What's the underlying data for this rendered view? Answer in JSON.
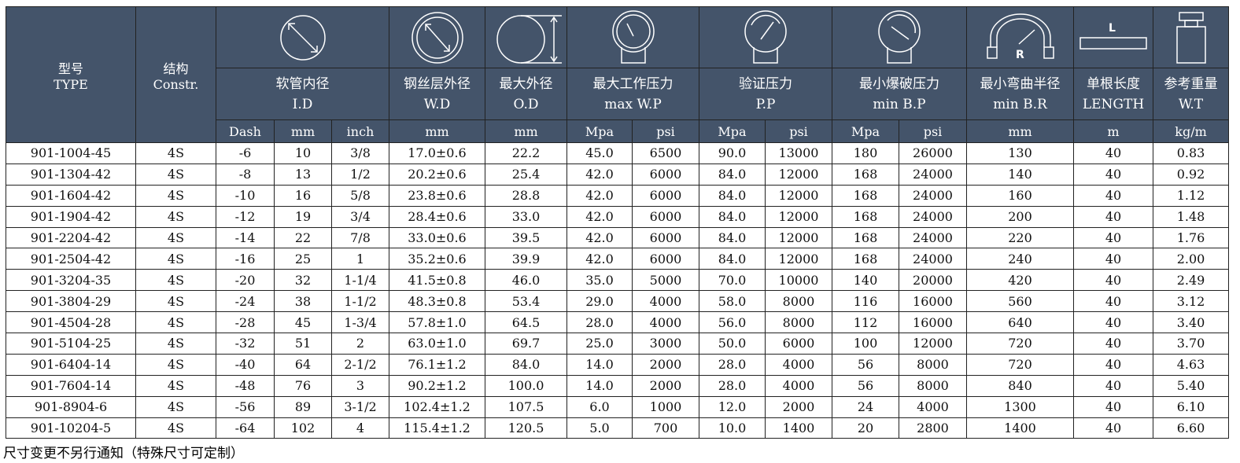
{
  "header": {
    "type": [
      "型号",
      "TYPE"
    ],
    "constr": [
      "结构",
      "Constr."
    ],
    "id": [
      "软管内径",
      "I.D"
    ],
    "wd": [
      "钢丝层外径",
      "W.D"
    ],
    "od": [
      "最大外径",
      "O.D"
    ],
    "wp": [
      "最大工作压力",
      "max W.P"
    ],
    "pp": [
      "验证压力",
      "P.P"
    ],
    "bp": [
      "最小爆破压力",
      "min B.P"
    ],
    "br": [
      "最小弯曲半径",
      "min B.R"
    ],
    "len": [
      "单根长度",
      "LENGTH"
    ],
    "wt": [
      "参考重量",
      "W.T"
    ],
    "br_icon_letter": "R",
    "len_icon_letter": "L"
  },
  "units": [
    "Dash",
    "mm",
    "inch",
    "mm",
    "mm",
    "Mpa",
    "psi",
    "Mpa",
    "psi",
    "Mpa",
    "psi",
    "mm",
    "m",
    "kg/m"
  ],
  "icons": [
    "diameter-circle-icon",
    "double-circle-diameter-icon",
    "outer-diameter-icon",
    "pressure-gauge-icon",
    "pressure-gauge-icon",
    "pressure-gauge-icon",
    "bend-radius-icon",
    "length-bar-icon",
    "weight-icon"
  ],
  "header_color": "#44546a",
  "rows": [
    [
      "901-1004-45",
      "4S",
      "-6",
      "10",
      "3/8",
      "17.0±0.6",
      "22.2",
      "45.0",
      "6500",
      "90.0",
      "13000",
      "180",
      "26000",
      "130",
      "40",
      "0.83"
    ],
    [
      "901-1304-42",
      "4S",
      "-8",
      "13",
      "1/2",
      "20.2±0.6",
      "25.4",
      "42.0",
      "6000",
      "84.0",
      "12000",
      "168",
      "24000",
      "140",
      "40",
      "0.92"
    ],
    [
      "901-1604-42",
      "4S",
      "-10",
      "16",
      "5/8",
      "23.8±0.6",
      "28.8",
      "42.0",
      "6000",
      "84.0",
      "12000",
      "168",
      "24000",
      "160",
      "40",
      "1.12"
    ],
    [
      "901-1904-42",
      "4S",
      "-12",
      "19",
      "3/4",
      "28.4±0.6",
      "33.0",
      "42.0",
      "6000",
      "84.0",
      "12000",
      "168",
      "24000",
      "200",
      "40",
      "1.48"
    ],
    [
      "901-2204-42",
      "4S",
      "-14",
      "22",
      "7/8",
      "33.0±0.6",
      "39.5",
      "42.0",
      "6000",
      "84.0",
      "12000",
      "168",
      "24000",
      "220",
      "40",
      "1.76"
    ],
    [
      "901-2504-42",
      "4S",
      "-16",
      "25",
      "1",
      "35.2±0.6",
      "39.9",
      "42.0",
      "6000",
      "84.0",
      "12000",
      "168",
      "24000",
      "240",
      "40",
      "2.00"
    ],
    [
      "901-3204-35",
      "4S",
      "-20",
      "32",
      "1-1/4",
      "41.5±0.8",
      "46.0",
      "35.0",
      "5000",
      "70.0",
      "10000",
      "140",
      "20000",
      "420",
      "40",
      "2.49"
    ],
    [
      "901-3804-29",
      "4S",
      "-24",
      "38",
      "1-1/2",
      "48.3±0.8",
      "53.4",
      "29.0",
      "4000",
      "58.0",
      "8000",
      "116",
      "16000",
      "560",
      "40",
      "3.12"
    ],
    [
      "901-4504-28",
      "4S",
      "-28",
      "45",
      "1-3/4",
      "57.8±1.0",
      "64.5",
      "28.0",
      "4000",
      "56.0",
      "8000",
      "112",
      "16000",
      "640",
      "40",
      "3.40"
    ],
    [
      "901-5104-25",
      "4S",
      "-32",
      "51",
      "2",
      "63.0±1.0",
      "69.7",
      "25.0",
      "3000",
      "50.0",
      "6000",
      "100",
      "12000",
      "720",
      "40",
      "3.70"
    ],
    [
      "901-6404-14",
      "4S",
      "-40",
      "64",
      "2-1/2",
      "76.1±1.2",
      "84.0",
      "14.0",
      "2000",
      "28.0",
      "4000",
      "56",
      "8000",
      "720",
      "40",
      "4.63"
    ],
    [
      "901-7604-14",
      "4S",
      "-48",
      "76",
      "3",
      "90.2±1.2",
      "100.0",
      "14.0",
      "2000",
      "28.0",
      "4000",
      "56",
      "8000",
      "840",
      "40",
      "5.40"
    ],
    [
      "901-8904-6",
      "4S",
      "-56",
      "89",
      "3-1/2",
      "102.4±1.2",
      "107.5",
      "6.0",
      "1000",
      "12.0",
      "2000",
      "24",
      "4000",
      "1300",
      "40",
      "6.10"
    ],
    [
      "901-10204-5",
      "4S",
      "-64",
      "102",
      "4",
      "115.4±1.2",
      "120.5",
      "5.0",
      "700",
      "10.0",
      "1400",
      "20",
      "2800",
      "1400",
      "40",
      "6.60"
    ]
  ],
  "footnote": "尺寸变更不另行通知（特殊尺寸可定制）"
}
